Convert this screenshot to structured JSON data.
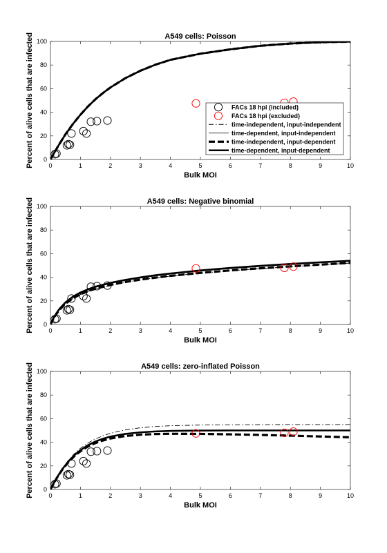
{
  "chart_data": [
    {
      "type": "scatter",
      "title": "A549 cells: Poisson",
      "xlabel": "Bulk MOI",
      "ylabel": "Percent of alive cells that are infected",
      "xlim": [
        0,
        10
      ],
      "ylim": [
        0,
        100
      ],
      "xticks": [
        0,
        1,
        2,
        3,
        4,
        5,
        6,
        7,
        8,
        9,
        10
      ],
      "yticks": [
        0,
        20,
        40,
        60,
        80,
        100
      ],
      "legend_position": "center-right",
      "points_included": [
        [
          0.15,
          4.5
        ],
        [
          0.2,
          5
        ],
        [
          0.55,
          12
        ],
        [
          0.6,
          13
        ],
        [
          0.65,
          12.5
        ],
        [
          0.7,
          22
        ],
        [
          1.1,
          24
        ],
        [
          1.2,
          22
        ],
        [
          1.35,
          32
        ],
        [
          1.55,
          32.5
        ],
        [
          1.9,
          33
        ]
      ],
      "points_excluded": [
        [
          4.85,
          47.5
        ],
        [
          7.8,
          48
        ],
        [
          8.1,
          49
        ]
      ],
      "curves": [
        {
          "style": "tidi",
          "x": [
            0,
            0.25,
            0.5,
            0.75,
            1,
            1.25,
            1.5,
            1.75,
            2,
            2.5,
            3,
            3.5,
            4,
            5,
            6,
            7,
            8,
            9,
            10
          ],
          "y": [
            0,
            11.1,
            21.3,
            30.1,
            37.9,
            44.9,
            51.0,
            56.3,
            61.0,
            68.9,
            75.2,
            80.3,
            84.4,
            89.6,
            93.3,
            96.3,
            98.2,
            99.3,
            99.8
          ]
        },
        {
          "style": "tdi",
          "x": [
            0,
            0.25,
            0.5,
            0.75,
            1,
            1.25,
            1.5,
            1.75,
            2,
            2.5,
            3,
            3.5,
            4,
            5,
            6,
            7,
            8,
            9,
            10
          ],
          "y": [
            0,
            11.1,
            21.3,
            30.1,
            37.9,
            44.9,
            51.0,
            56.3,
            61.0,
            68.9,
            75.2,
            80.3,
            84.4,
            89.6,
            93.3,
            96.3,
            98.2,
            99.3,
            99.8
          ]
        },
        {
          "style": "tidd",
          "x": [
            0,
            0.25,
            0.5,
            0.75,
            1,
            1.25,
            1.5,
            1.75,
            2,
            2.5,
            3,
            3.5,
            4,
            5,
            6,
            7,
            8,
            9,
            10
          ],
          "y": [
            0,
            11.1,
            21.3,
            30.1,
            37.9,
            44.9,
            51.0,
            56.3,
            61.0,
            68.9,
            75.2,
            80.3,
            84.4,
            89.6,
            93.3,
            96.3,
            98.2,
            99.3,
            99.8
          ]
        },
        {
          "style": "tdd",
          "x": [
            0,
            0.25,
            0.5,
            0.75,
            1,
            1.25,
            1.5,
            1.75,
            2,
            2.5,
            3,
            3.5,
            4,
            5,
            6,
            7,
            8,
            9,
            10
          ],
          "y": [
            0,
            11.1,
            21.3,
            30.1,
            37.9,
            44.9,
            51.0,
            56.3,
            61.0,
            68.9,
            75.2,
            80.3,
            84.4,
            89.6,
            93.3,
            96.3,
            98.2,
            99.3,
            99.8
          ]
        }
      ],
      "legend": [
        {
          "label": "FACs 18 hpi (included)",
          "kind": "marker",
          "color": "#000000"
        },
        {
          "label": "FACs 18 hpi (excluded)",
          "kind": "marker",
          "color": "#ff0000"
        },
        {
          "label": "time-independent, input-independent",
          "kind": "line",
          "style": "tidi"
        },
        {
          "label": "time-dependent, input-independent",
          "kind": "line",
          "style": "tdi"
        },
        {
          "label": "time-independent, input-dependent",
          "kind": "line",
          "style": "tidd"
        },
        {
          "label": "time-dependent, input-dependent",
          "kind": "line",
          "style": "tdd"
        }
      ]
    },
    {
      "type": "scatter",
      "title": "A549 cells: Negative binomial",
      "xlabel": "Bulk MOI",
      "ylabel": "Percent of alive cells that are infected",
      "xlim": [
        0,
        10
      ],
      "ylim": [
        0,
        100
      ],
      "xticks": [
        0,
        1,
        2,
        3,
        4,
        5,
        6,
        7,
        8,
        9,
        10
      ],
      "yticks": [
        0,
        20,
        40,
        60,
        80,
        100
      ],
      "points_included": [
        [
          0.15,
          4.5
        ],
        [
          0.2,
          5
        ],
        [
          0.55,
          12
        ],
        [
          0.6,
          13
        ],
        [
          0.65,
          12.5
        ],
        [
          0.7,
          22
        ],
        [
          1.1,
          24
        ],
        [
          1.2,
          22
        ],
        [
          1.35,
          32
        ],
        [
          1.55,
          32.5
        ],
        [
          1.9,
          33
        ]
      ],
      "points_excluded": [
        [
          4.85,
          47.5
        ],
        [
          7.8,
          48
        ],
        [
          8.1,
          49
        ]
      ],
      "curves": [
        {
          "style": "tidi",
          "x": [
            0,
            0.1,
            0.2,
            0.3,
            0.5,
            0.75,
            1,
            1.25,
            1.5,
            2,
            2.5,
            3,
            3.5,
            4,
            5,
            6,
            7,
            8,
            9,
            10
          ],
          "y": [
            0,
            4.8,
            8.8,
            12.1,
            17.3,
            22,
            25.4,
            28,
            30.1,
            33.3,
            35.8,
            37.8,
            39.5,
            41,
            43.5,
            45.5,
            47.3,
            49,
            50.5,
            52
          ]
        },
        {
          "style": "tdi",
          "x": [
            0,
            0.1,
            0.2,
            0.3,
            0.5,
            0.75,
            1,
            1.25,
            1.5,
            2,
            2.5,
            3,
            3.5,
            4,
            5,
            6,
            7,
            8,
            9,
            10
          ],
          "y": [
            0,
            5.1,
            9.3,
            12.8,
            18.2,
            23,
            26.5,
            29.2,
            31.4,
            34.7,
            37.2,
            39.3,
            41.1,
            42.6,
            45.2,
            47.3,
            49.1,
            50.7,
            52.1,
            53.5
          ]
        },
        {
          "style": "tidd",
          "x": [
            0,
            0.1,
            0.2,
            0.3,
            0.5,
            0.75,
            1,
            1.25,
            1.5,
            2,
            2.5,
            3,
            3.5,
            4,
            5,
            6,
            7,
            8,
            9,
            10
          ],
          "y": [
            0,
            4.9,
            9,
            12.4,
            17.6,
            22.2,
            25.6,
            28.2,
            30.3,
            33.5,
            36,
            38,
            39.7,
            41.2,
            43.7,
            45.8,
            47.6,
            49.2,
            50.7,
            52.2
          ]
        },
        {
          "style": "tdd",
          "x": [
            0,
            0.1,
            0.2,
            0.3,
            0.5,
            0.75,
            1,
            1.25,
            1.5,
            2,
            2.5,
            3,
            3.5,
            4,
            5,
            6,
            7,
            8,
            9,
            10
          ],
          "y": [
            0,
            5.2,
            9.6,
            13.2,
            18.7,
            23.6,
            27.1,
            29.8,
            32,
            35.3,
            37.8,
            39.9,
            41.7,
            43.2,
            45.8,
            47.9,
            49.7,
            51.3,
            52.7,
            54
          ]
        }
      ]
    },
    {
      "type": "scatter",
      "title": "A549 cells: zero-inflated Poisson",
      "xlabel": "Bulk MOI",
      "ylabel": "Percent of alive cells that are infected",
      "xlim": [
        0,
        10
      ],
      "ylim": [
        0,
        100
      ],
      "xticks": [
        0,
        1,
        2,
        3,
        4,
        5,
        6,
        7,
        8,
        9,
        10
      ],
      "yticks": [
        0,
        20,
        40,
        60,
        80,
        100
      ],
      "points_included": [
        [
          0.15,
          4.5
        ],
        [
          0.2,
          5
        ],
        [
          0.55,
          12
        ],
        [
          0.6,
          13
        ],
        [
          0.65,
          12.5
        ],
        [
          0.7,
          22
        ],
        [
          1.1,
          24
        ],
        [
          1.2,
          22
        ],
        [
          1.35,
          32
        ],
        [
          1.55,
          32.5
        ],
        [
          1.9,
          33
        ]
      ],
      "points_excluded": [
        [
          4.85,
          47.5
        ],
        [
          7.8,
          48
        ],
        [
          8.1,
          49
        ]
      ],
      "curves": [
        {
          "style": "tidi",
          "x": [
            0,
            0.2,
            0.4,
            0.6,
            0.8,
            1,
            1.25,
            1.5,
            1.75,
            2,
            2.5,
            3,
            3.5,
            4,
            5,
            6,
            7,
            8,
            9,
            10
          ],
          "y": [
            0,
            9.9,
            18.1,
            24.8,
            30.3,
            34.9,
            39.4,
            42.8,
            45.5,
            47.6,
            50.5,
            52.3,
            53.4,
            54,
            54.6,
            54.8,
            54.9,
            55,
            55,
            55
          ]
        },
        {
          "style": "tdi",
          "x": [
            0,
            0.2,
            0.4,
            0.6,
            0.8,
            1,
            1.25,
            1.5,
            1.75,
            2,
            2.5,
            3,
            3.5,
            4,
            5,
            6,
            7,
            8,
            9,
            10
          ],
          "y": [
            0,
            9.5,
            17.4,
            23.8,
            29.1,
            33.3,
            37.5,
            40.6,
            43,
            44.8,
            47.1,
            48.4,
            49.2,
            49.6,
            49.9,
            50,
            50,
            50,
            50,
            50
          ]
        },
        {
          "style": "tidd",
          "x": [
            0,
            0.2,
            0.4,
            0.6,
            0.8,
            1,
            1.25,
            1.5,
            1.75,
            2,
            2.5,
            3,
            3.5,
            4,
            5,
            6,
            7,
            8,
            9,
            10
          ],
          "y": [
            0,
            9.3,
            17,
            23.2,
            28.3,
            32.4,
            36.4,
            39.3,
            41.5,
            43.2,
            45.3,
            46.4,
            47,
            47.2,
            47.1,
            46.7,
            46.2,
            45.6,
            44.9,
            44.2
          ]
        },
        {
          "style": "tdd",
          "x": [
            0,
            0.2,
            0.4,
            0.6,
            0.8,
            1,
            1.25,
            1.5,
            1.75,
            2,
            2.5,
            3,
            3.5,
            4,
            5,
            6,
            7,
            8,
            9,
            10
          ],
          "y": [
            0,
            9.5,
            17.4,
            23.8,
            29.1,
            33.3,
            37.5,
            40.6,
            43,
            44.8,
            47.1,
            48.4,
            49.2,
            49.6,
            49.9,
            50,
            50,
            50,
            50,
            50
          ]
        }
      ]
    }
  ]
}
